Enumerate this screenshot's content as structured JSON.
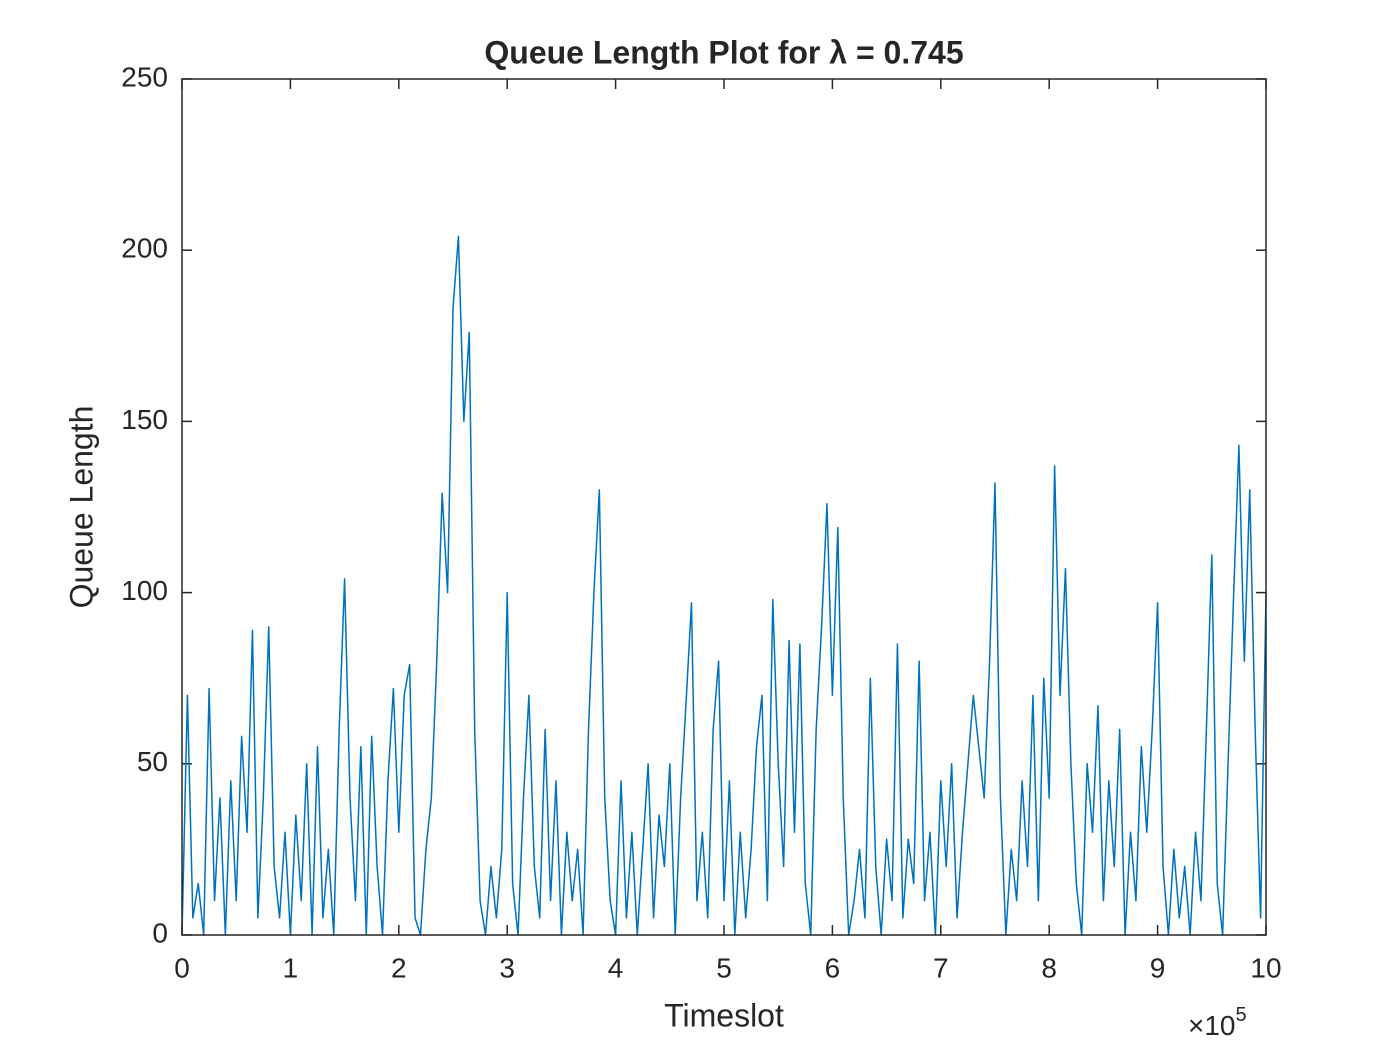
{
  "chart_data": {
    "type": "line",
    "title": "Queue Length Plot for λ = 0.745",
    "xlabel": "Timeslot",
    "ylabel": "Queue Length",
    "x_multiplier_base": "×10",
    "x_multiplier_exponent": 5,
    "xlim": [
      0,
      10
    ],
    "xticks": [
      0,
      1,
      2,
      3,
      4,
      5,
      6,
      7,
      8,
      9,
      10
    ],
    "ylim": [
      0,
      250
    ],
    "yticks": [
      0,
      50,
      100,
      150,
      200,
      250
    ],
    "grid": false,
    "series": [
      {
        "color": "#0072bd",
        "x": [
          0,
          0.05,
          0.1,
          0.15,
          0.2,
          0.25,
          0.3,
          0.35,
          0.4,
          0.45,
          0.5,
          0.55,
          0.6,
          0.65,
          0.7,
          0.75,
          0.8,
          0.85,
          0.9,
          0.95,
          1,
          1.05,
          1.1,
          1.15,
          1.2,
          1.25,
          1.3,
          1.35,
          1.4,
          1.45,
          1.5,
          1.55,
          1.6,
          1.65,
          1.7,
          1.75,
          1.8,
          1.85,
          1.9,
          1.95,
          2,
          2.05,
          2.1,
          2.15,
          2.2,
          2.25,
          2.3,
          2.35,
          2.4,
          2.45,
          2.5,
          2.55,
          2.6,
          2.65,
          2.7,
          2.75,
          2.8,
          2.85,
          2.9,
          2.95,
          3,
          3.05,
          3.1,
          3.15,
          3.2,
          3.25,
          3.3,
          3.35,
          3.4,
          3.45,
          3.5,
          3.55,
          3.6,
          3.65,
          3.7,
          3.75,
          3.8,
          3.85,
          3.9,
          3.95,
          4,
          4.05,
          4.1,
          4.15,
          4.2,
          4.25,
          4.3,
          4.35,
          4.4,
          4.45,
          4.5,
          4.55,
          4.6,
          4.65,
          4.7,
          4.75,
          4.8,
          4.85,
          4.9,
          4.95,
          5,
          5.05,
          5.1,
          5.15,
          5.2,
          5.25,
          5.3,
          5.35,
          5.4,
          5.45,
          5.5,
          5.55,
          5.6,
          5.65,
          5.7,
          5.75,
          5.8,
          5.85,
          5.9,
          5.95,
          6,
          6.05,
          6.1,
          6.15,
          6.2,
          6.25,
          6.3,
          6.35,
          6.4,
          6.45,
          6.5,
          6.55,
          6.6,
          6.65,
          6.7,
          6.75,
          6.8,
          6.85,
          6.9,
          6.95,
          7,
          7.05,
          7.1,
          7.15,
          7.2,
          7.25,
          7.3,
          7.35,
          7.4,
          7.45,
          7.5,
          7.55,
          7.6,
          7.65,
          7.7,
          7.75,
          7.8,
          7.85,
          7.9,
          7.95,
          8,
          8.05,
          8.1,
          8.15,
          8.2,
          8.25,
          8.3,
          8.35,
          8.4,
          8.45,
          8.5,
          8.55,
          8.6,
          8.65,
          8.7,
          8.75,
          8.8,
          8.85,
          8.9,
          8.95,
          9,
          9.05,
          9.1,
          9.15,
          9.2,
          9.25,
          9.3,
          9.35,
          9.4,
          9.45,
          9.5,
          9.55,
          9.6,
          9.65,
          9.7,
          9.75,
          9.8,
          9.85,
          9.9,
          9.95,
          10
        ],
        "values": [
          0,
          70,
          5,
          15,
          0,
          72,
          10,
          40,
          0,
          45,
          10,
          58,
          30,
          89,
          5,
          40,
          90,
          20,
          5,
          30,
          0,
          35,
          10,
          50,
          0,
          55,
          5,
          25,
          0,
          60,
          104,
          40,
          10,
          55,
          0,
          58,
          20,
          0,
          45,
          72,
          30,
          70,
          79,
          5,
          0,
          25,
          40,
          80,
          129,
          100,
          183,
          204,
          150,
          176,
          60,
          10,
          0,
          20,
          5,
          25,
          100,
          15,
          0,
          40,
          70,
          20,
          5,
          60,
          10,
          45,
          0,
          30,
          10,
          25,
          0,
          60,
          100,
          130,
          40,
          10,
          0,
          45,
          5,
          30,
          0,
          25,
          50,
          5,
          35,
          20,
          50,
          0,
          40,
          68,
          97,
          10,
          30,
          5,
          60,
          80,
          10,
          45,
          0,
          30,
          5,
          25,
          55,
          70,
          10,
          98,
          50,
          20,
          86,
          30,
          85,
          15,
          0,
          60,
          90,
          126,
          70,
          119,
          40,
          0,
          10,
          25,
          5,
          75,
          20,
          0,
          28,
          10,
          85,
          5,
          28,
          15,
          80,
          10,
          30,
          0,
          45,
          20,
          50,
          5,
          30,
          50,
          70,
          55,
          40,
          80,
          132,
          40,
          0,
          25,
          10,
          45,
          20,
          70,
          10,
          75,
          40,
          137,
          70,
          107,
          50,
          15,
          0,
          50,
          30,
          67,
          10,
          45,
          20,
          60,
          0,
          30,
          10,
          55,
          30,
          60,
          97,
          20,
          0,
          25,
          5,
          20,
          0,
          30,
          10,
          60,
          111,
          15,
          0,
          50,
          98,
          143,
          80,
          130,
          60,
          5,
          100
        ]
      }
    ]
  }
}
